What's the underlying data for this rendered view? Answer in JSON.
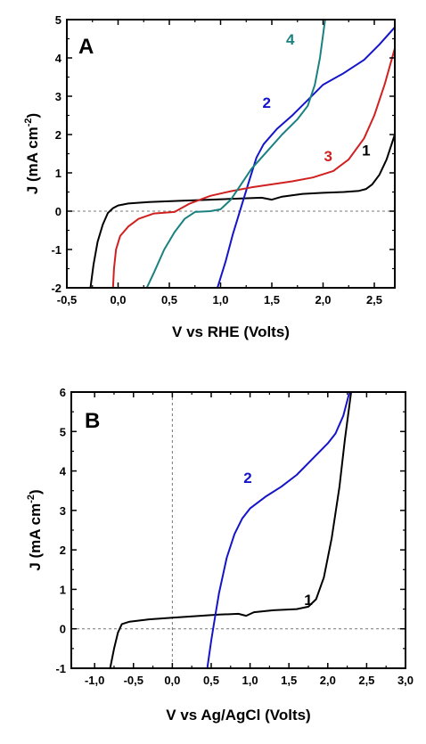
{
  "chart_data": [
    {
      "panel_label": "A",
      "type": "line",
      "xlabel": "V vs RHE  (Volts)",
      "ylabel": "J  (mA cm",
      "ylabel_sup": "-2",
      "ylabel_close": ")",
      "xlim": [
        -0.5,
        2.7
      ],
      "ylim": [
        -2,
        5
      ],
      "xticks": [
        -0.5,
        0.0,
        0.5,
        1.0,
        1.5,
        2.0,
        2.5
      ],
      "xtick_labels": [
        "-0,5",
        "0,0",
        "0,5",
        "1,0",
        "1,5",
        "2,0",
        "2,5"
      ],
      "yticks": [
        -2,
        -1,
        0,
        1,
        2,
        3,
        4,
        5
      ],
      "ytick_labels": [
        "-2",
        "-1",
        "0",
        "1",
        "2",
        "3",
        "4",
        "5"
      ],
      "zero_line": "horizontal",
      "series": [
        {
          "label": "1",
          "color": "#000000",
          "points": [
            [
              -0.27,
              -2
            ],
            [
              -0.24,
              -1.4
            ],
            [
              -0.2,
              -0.8
            ],
            [
              -0.15,
              -0.35
            ],
            [
              -0.1,
              -0.05
            ],
            [
              -0.05,
              0.08
            ],
            [
              0.0,
              0.15
            ],
            [
              0.1,
              0.2
            ],
            [
              0.3,
              0.24
            ],
            [
              0.6,
              0.27
            ],
            [
              0.9,
              0.3
            ],
            [
              1.2,
              0.33
            ],
            [
              1.4,
              0.35
            ],
            [
              1.5,
              0.3
            ],
            [
              1.6,
              0.38
            ],
            [
              1.8,
              0.45
            ],
            [
              2.0,
              0.48
            ],
            [
              2.2,
              0.5
            ],
            [
              2.35,
              0.53
            ],
            [
              2.42,
              0.58
            ],
            [
              2.48,
              0.7
            ],
            [
              2.55,
              0.95
            ],
            [
              2.62,
              1.35
            ],
            [
              2.7,
              2.0
            ]
          ]
        },
        {
          "label": "2",
          "color": "#1414c8",
          "points": [
            [
              0.97,
              -2
            ],
            [
              1.05,
              -1.3
            ],
            [
              1.12,
              -0.6
            ],
            [
              1.2,
              0.1
            ],
            [
              1.28,
              0.8
            ],
            [
              1.35,
              1.4
            ],
            [
              1.42,
              1.75
            ],
            [
              1.55,
              2.15
            ],
            [
              1.7,
              2.5
            ],
            [
              1.85,
              2.9
            ],
            [
              2.0,
              3.3
            ],
            [
              2.2,
              3.6
            ],
            [
              2.4,
              3.95
            ],
            [
              2.55,
              4.35
            ],
            [
              2.7,
              4.8
            ]
          ]
        },
        {
          "label": "3",
          "color": "#d02020",
          "points": [
            [
              -0.05,
              -2
            ],
            [
              -0.04,
              -1.5
            ],
            [
              -0.02,
              -1.0
            ],
            [
              0.02,
              -0.65
            ],
            [
              0.1,
              -0.4
            ],
            [
              0.2,
              -0.2
            ],
            [
              0.35,
              -0.06
            ],
            [
              0.55,
              -0.02
            ],
            [
              0.7,
              0.2
            ],
            [
              0.9,
              0.4
            ],
            [
              1.1,
              0.52
            ],
            [
              1.3,
              0.62
            ],
            [
              1.5,
              0.7
            ],
            [
              1.7,
              0.78
            ],
            [
              1.9,
              0.88
            ],
            [
              2.1,
              1.05
            ],
            [
              2.25,
              1.35
            ],
            [
              2.4,
              1.9
            ],
            [
              2.5,
              2.5
            ],
            [
              2.6,
              3.3
            ],
            [
              2.7,
              4.25
            ]
          ]
        },
        {
          "label": "4",
          "color": "#1a8080",
          "points": [
            [
              0.28,
              -2
            ],
            [
              0.35,
              -1.6
            ],
            [
              0.45,
              -1.0
            ],
            [
              0.55,
              -0.55
            ],
            [
              0.65,
              -0.2
            ],
            [
              0.75,
              -0.02
            ],
            [
              0.9,
              0.0
            ],
            [
              1.0,
              0.05
            ],
            [
              1.1,
              0.3
            ],
            [
              1.2,
              0.7
            ],
            [
              1.3,
              1.1
            ],
            [
              1.45,
              1.55
            ],
            [
              1.6,
              2.0
            ],
            [
              1.75,
              2.4
            ],
            [
              1.85,
              2.75
            ],
            [
              1.92,
              3.3
            ],
            [
              1.97,
              4.0
            ],
            [
              2.02,
              5.0
            ]
          ]
        }
      ]
    },
    {
      "panel_label": "B",
      "type": "line",
      "xlabel": "V vs Ag/AgCl  (Volts)",
      "ylabel": "J  (mA cm",
      "ylabel_sup": "-2",
      "ylabel_close": ")",
      "xlim": [
        -1.3,
        3.0
      ],
      "ylim": [
        -1,
        6
      ],
      "xticks": [
        -1.0,
        -0.5,
        0.0,
        0.5,
        1.0,
        1.5,
        2.0,
        2.5,
        3.0
      ],
      "xtick_labels": [
        "-1,0",
        "-0,5",
        "0,0",
        "0,5",
        "1,0",
        "1,5",
        "2,0",
        "2,5",
        "3,0"
      ],
      "yticks": [
        -1,
        0,
        1,
        2,
        3,
        4,
        5,
        6
      ],
      "ytick_labels": [
        "-1",
        "0",
        "1",
        "2",
        "3",
        "4",
        "5",
        "6"
      ],
      "zero_line": "both",
      "series": [
        {
          "label": "1",
          "color": "#000000",
          "points": [
            [
              -0.8,
              -1
            ],
            [
              -0.75,
              -0.5
            ],
            [
              -0.7,
              -0.1
            ],
            [
              -0.65,
              0.12
            ],
            [
              -0.55,
              0.18
            ],
            [
              -0.3,
              0.24
            ],
            [
              0.0,
              0.28
            ],
            [
              0.3,
              0.32
            ],
            [
              0.6,
              0.36
            ],
            [
              0.85,
              0.38
            ],
            [
              0.95,
              0.33
            ],
            [
              1.05,
              0.42
            ],
            [
              1.3,
              0.47
            ],
            [
              1.6,
              0.5
            ],
            [
              1.75,
              0.56
            ],
            [
              1.85,
              0.75
            ],
            [
              1.95,
              1.3
            ],
            [
              2.05,
              2.3
            ],
            [
              2.15,
              3.6
            ],
            [
              2.22,
              4.8
            ],
            [
              2.3,
              6.0
            ]
          ]
        },
        {
          "label": "2",
          "color": "#1414c8",
          "points": [
            [
              0.45,
              -1
            ],
            [
              0.5,
              -0.3
            ],
            [
              0.55,
              0.3
            ],
            [
              0.6,
              0.9
            ],
            [
              0.7,
              1.8
            ],
            [
              0.8,
              2.4
            ],
            [
              0.9,
              2.8
            ],
            [
              1.0,
              3.05
            ],
            [
              1.2,
              3.35
            ],
            [
              1.4,
              3.6
            ],
            [
              1.6,
              3.9
            ],
            [
              1.8,
              4.3
            ],
            [
              2.0,
              4.7
            ],
            [
              2.1,
              4.95
            ],
            [
              2.2,
              5.4
            ],
            [
              2.28,
              6.0
            ]
          ]
        }
      ]
    }
  ]
}
